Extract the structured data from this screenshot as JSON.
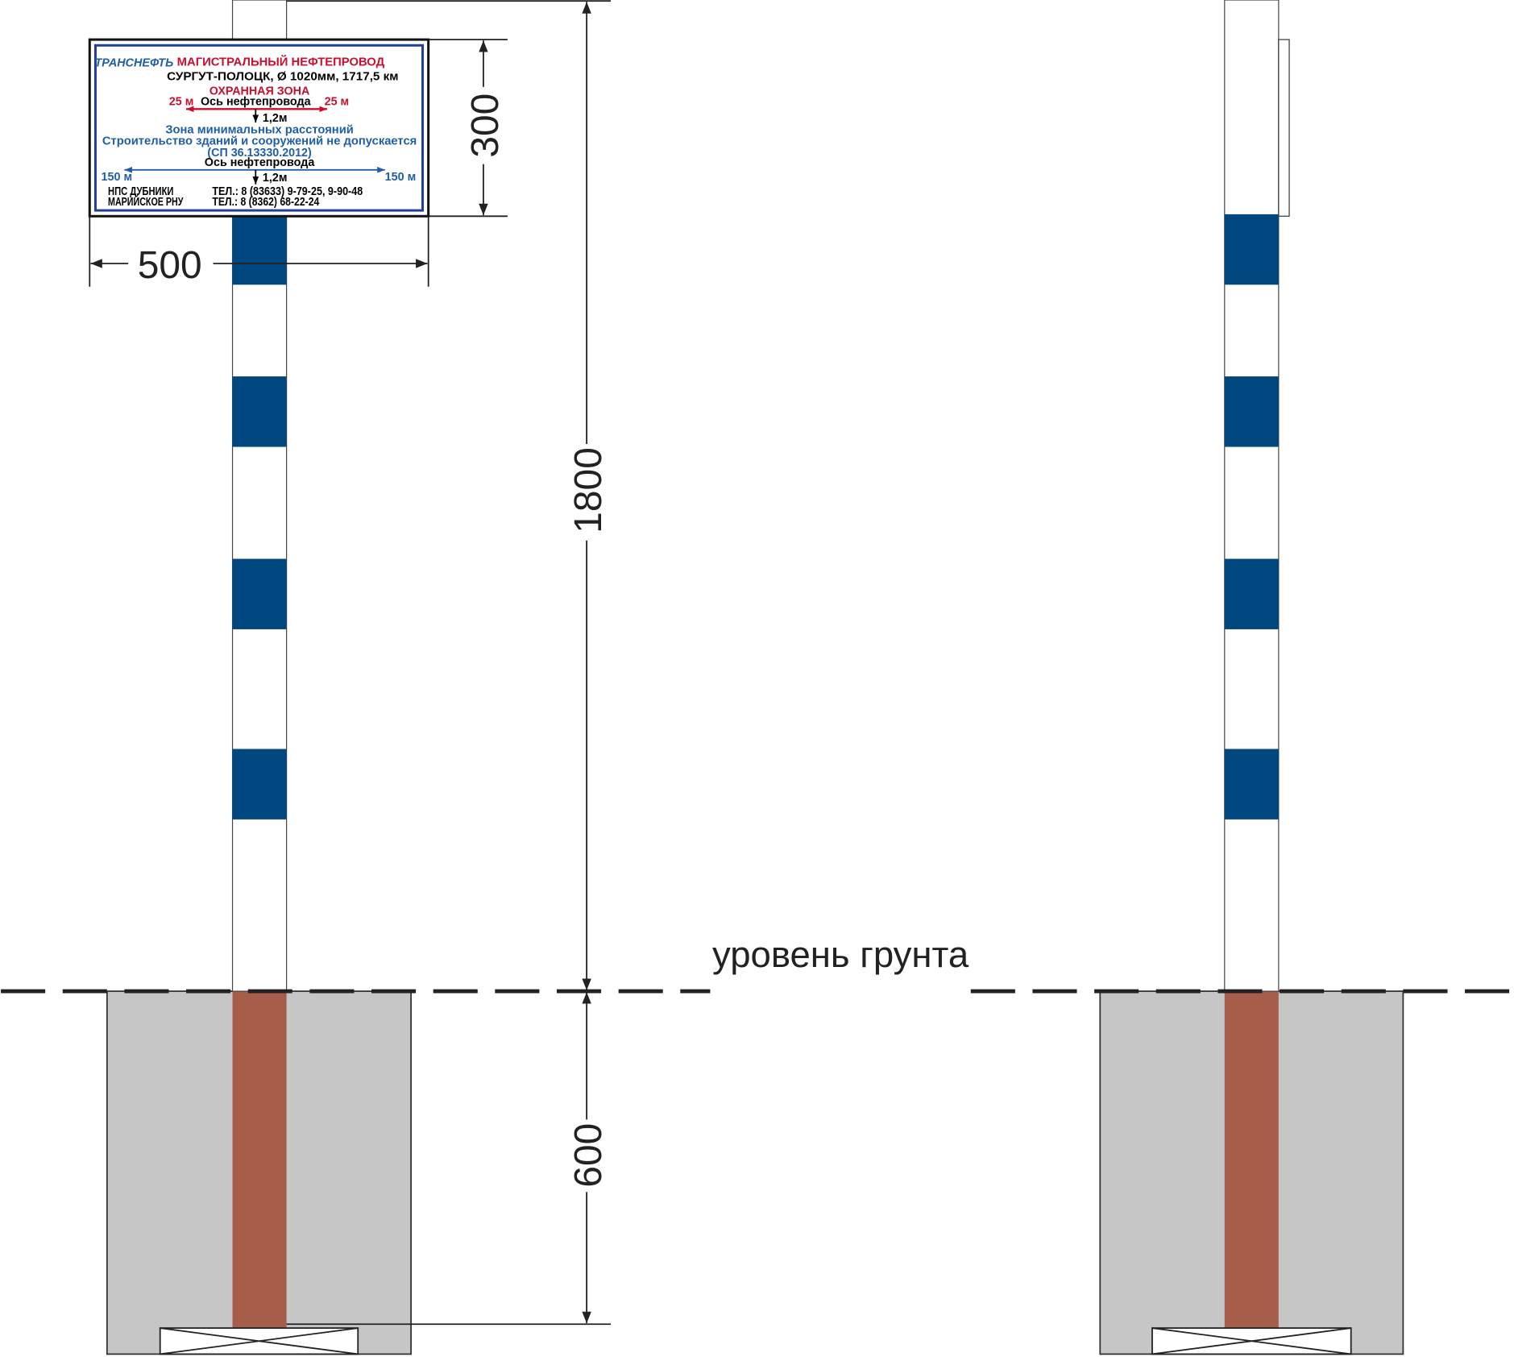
{
  "sign": {
    "logo": "ТРАНСНЕФТЬ",
    "title": "МАГИСТРАЛЬНЫЙ НЕФТЕПРОВОД",
    "pipeline": "СУРГУТ-ПОЛОЦК, Ø 1020мм, 1717,5 км",
    "zone_title": "ОХРАННАЯ ЗОНА",
    "zone_left": "25 м",
    "zone_right": "25 м",
    "zone_axis": "Ось нефтепровода",
    "zone_depth": "1,2м",
    "min_title": "Зона минимальных расстояний",
    "min_text": "Строительство зданий и сооружений  не допускается",
    "min_code": "(СП 36.13330.2012)",
    "min_axis": "Ось нефтепровода",
    "min_left": "150 м",
    "min_right": "150 м",
    "min_depth": "1,2м",
    "station": "НПС ДУБНИКИ",
    "station_phone": "ТЕЛ.: 8 (83633) 9-79-25, 9-90-48",
    "department": "МАРИЙСКОЕ РНУ",
    "department_phone": "ТЕЛ.: 8 (8362) 68-22-24"
  },
  "dimensions": {
    "sign_width": "500",
    "sign_height": "300",
    "above_ground": "1800",
    "below_ground": "600"
  },
  "ground_label": "уровень грунта"
}
